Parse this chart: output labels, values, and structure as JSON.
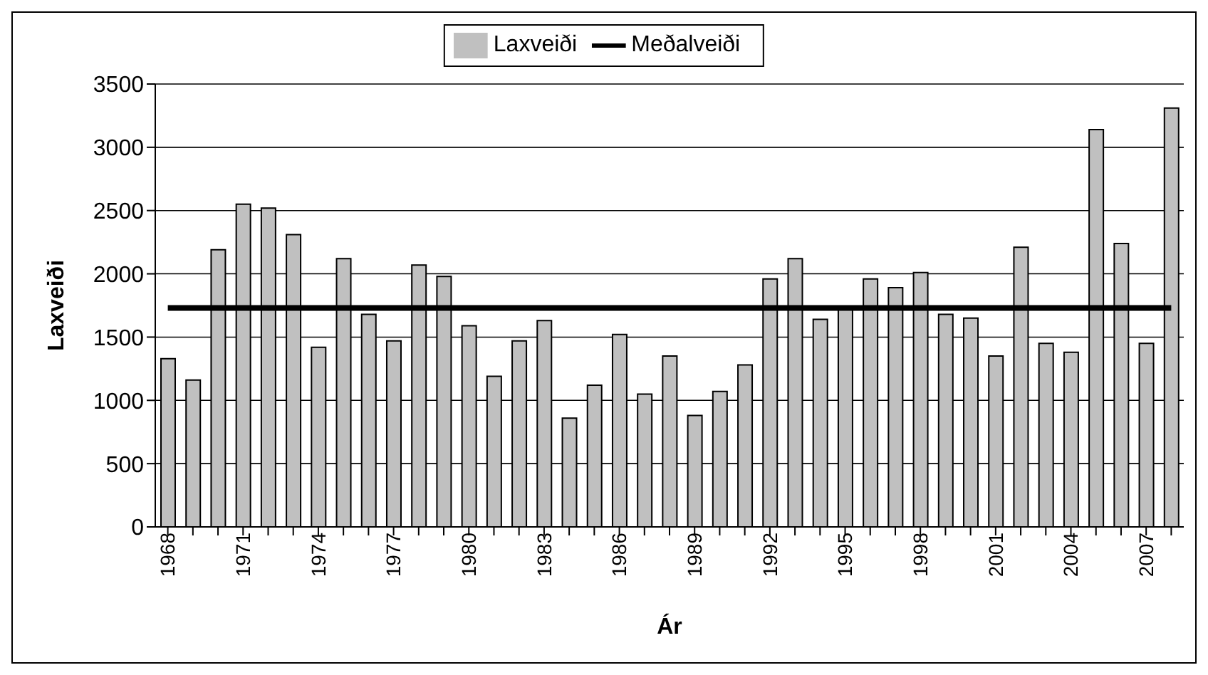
{
  "chart_data": {
    "type": "bar",
    "xlabel": "Ár",
    "ylabel": "Laxveiði",
    "categories": [
      "1968",
      null,
      null,
      "1971",
      null,
      null,
      "1974",
      null,
      null,
      "1977",
      null,
      null,
      "1980",
      null,
      null,
      "1983",
      null,
      null,
      "1986",
      null,
      null,
      "1989",
      null,
      null,
      "1992",
      null,
      null,
      "1995",
      null,
      null,
      "1998",
      null,
      null,
      "2001",
      null,
      null,
      "2004",
      null,
      null,
      "2007",
      null
    ],
    "series": [
      {
        "name": "Laxveiði",
        "color": "#c0c0c0",
        "values": [
          1330,
          1160,
          2190,
          2550,
          2520,
          2310,
          1420,
          2120,
          1680,
          1470,
          2070,
          1980,
          1590,
          1190,
          1470,
          1630,
          860,
          1120,
          1520,
          1050,
          1350,
          880,
          1070,
          1280,
          1960,
          2120,
          1640,
          1720,
          1960,
          1890,
          2010,
          1680,
          1650,
          1350,
          2210,
          1450,
          1380,
          3140,
          2240,
          1450,
          3310
        ]
      },
      {
        "name": "Meðalveiði",
        "type": "line",
        "color": "#000000",
        "values": [
          1730,
          1730,
          1730,
          1730,
          1730,
          1730,
          1730,
          1730,
          1730,
          1730,
          1730,
          1730,
          1730,
          1730,
          1730,
          1730,
          1730,
          1730,
          1730,
          1730,
          1730,
          1730,
          1730,
          1730,
          1730,
          1730,
          1730,
          1730,
          1730,
          1730,
          1730,
          1730,
          1730,
          1730,
          1730,
          1730,
          1730,
          1730,
          1730,
          1730,
          1730
        ]
      }
    ],
    "ylim": [
      0,
      3500
    ],
    "yticks": [
      0,
      500,
      1000,
      1500,
      2000,
      2500,
      3000,
      3500
    ],
    "grid": "y",
    "legend": "top",
    "marker": "none"
  }
}
